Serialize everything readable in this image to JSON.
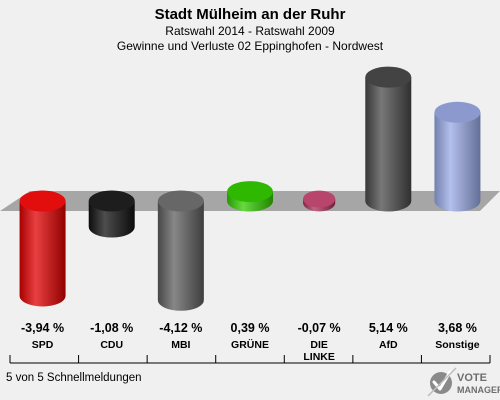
{
  "header": {
    "title": "Stadt Mülheim an der Ruhr",
    "subtitle1": "Ratswahl 2014 - Ratswahl 2009",
    "subtitle2": "Gewinne und Verluste 02 Eppinghofen - Nordwest"
  },
  "footer": {
    "status": "5 von 5 Schnellmeldungen",
    "logo_line1": "VOTE",
    "logo_line2": "MANAGER"
  },
  "chart_data": {
    "type": "bar",
    "categories": [
      "SPD",
      "CDU",
      "MBI",
      "GRÜNE",
      "DIE LINKE",
      "AfD",
      "Sonstige"
    ],
    "category_lines": [
      [
        "SPD"
      ],
      [
        "CDU"
      ],
      [
        "MBI"
      ],
      [
        "GRÜNE"
      ],
      [
        "DIE",
        "LINKE"
      ],
      [
        "AfD"
      ],
      [
        "Sonstige"
      ]
    ],
    "values": [
      -3.94,
      -1.08,
      -4.12,
      0.39,
      -0.07,
      5.14,
      3.68
    ],
    "value_labels": [
      "-3,94 %",
      "-1,08 %",
      "-4,12 %",
      "0,39 %",
      "-0,07 %",
      "5,14 %",
      "3,68 %"
    ],
    "colors": [
      "#e00000",
      "#111111",
      "#5f5f5f",
      "#33cc00",
      "#b0305a",
      "#4a4a4a",
      "#9aaae6"
    ],
    "title": "Stadt Mülheim an der Ruhr",
    "xlabel": "",
    "ylabel": "",
    "grid": false
  }
}
